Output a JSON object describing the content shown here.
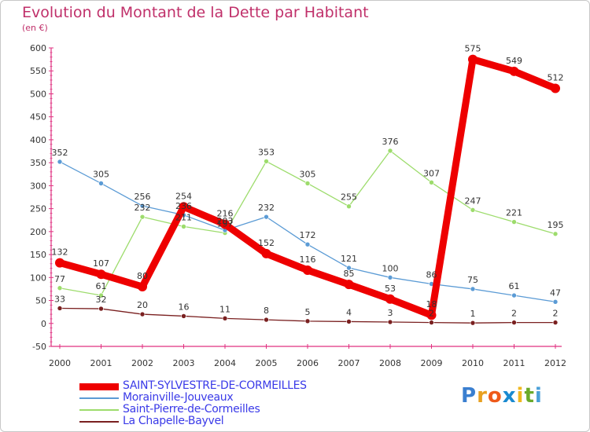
{
  "chart_data": {
    "type": "line",
    "title": "Evolution du Montant de la Dette par Habitant",
    "subtitle": "(en €)",
    "x": [
      "2000",
      "2001",
      "2002",
      "2003",
      "2004",
      "2005",
      "2006",
      "2007",
      "2008",
      "2009",
      "2010",
      "2011",
      "2012"
    ],
    "ylim": [
      -50,
      600
    ],
    "yticks": [
      -50,
      0,
      50,
      100,
      150,
      200,
      250,
      300,
      350,
      400,
      450,
      500,
      550,
      600
    ],
    "grid": false,
    "legend_position": "bottom-left",
    "series": [
      {
        "name": "SAINT-SYLVESTRE-DE-CORMEILLES",
        "color": "#ee0000",
        "values": [
          132,
          107,
          80,
          254,
          216,
          152,
          116,
          85,
          53,
          18,
          575,
          549,
          512
        ]
      },
      {
        "name": "Morainville-Jouveaux",
        "color": "#5b9bd5",
        "values": [
          352,
          305,
          256,
          236,
          203,
          232,
          172,
          121,
          100,
          86,
          75,
          61,
          47
        ]
      },
      {
        "name": "Saint-Pierre-de-Cormeilles",
        "color": "#9ddc6c",
        "values": [
          77,
          61,
          232,
          211,
          197,
          353,
          305,
          255,
          376,
          307,
          247,
          221,
          195
        ]
      },
      {
        "name": "La Chapelle-Bayvel",
        "color": "#7a2020",
        "values": [
          33,
          32,
          20,
          16,
          11,
          8,
          5,
          4,
          3,
          2,
          1,
          2,
          2
        ]
      }
    ]
  },
  "logo": {
    "letters": [
      "P",
      "r",
      "o",
      "x",
      "i",
      "t",
      "i"
    ]
  }
}
